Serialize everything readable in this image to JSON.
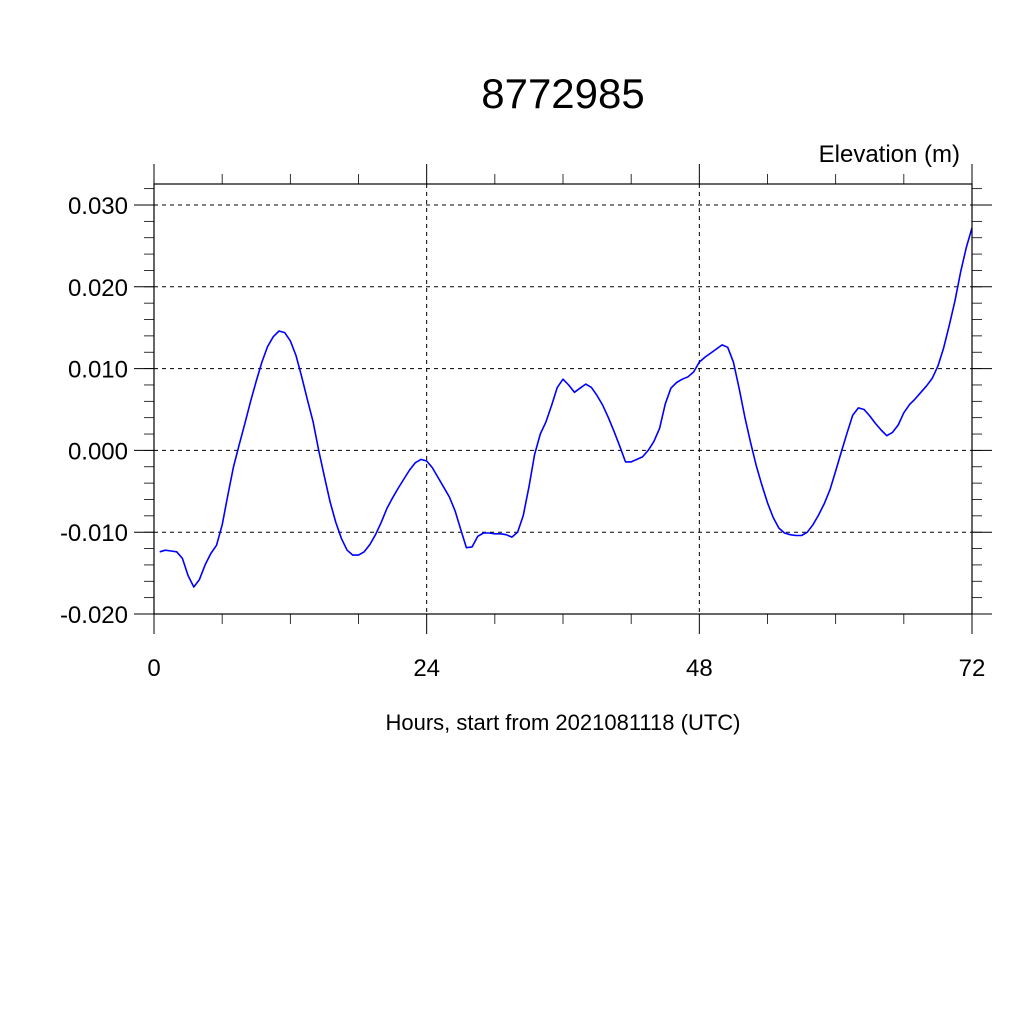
{
  "chart_data": {
    "type": "line",
    "title": "8772985",
    "ylabel": "Elevation (m)",
    "xlabel": "Hours, start from 2021081118 (UTC)",
    "xlim": [
      0,
      72
    ],
    "ylim": [
      -0.02,
      0.03
    ],
    "x_ticks": [
      0,
      24,
      48,
      72
    ],
    "x_tick_labels": [
      "0",
      "24",
      "48",
      "72"
    ],
    "y_ticks": [
      -0.02,
      -0.01,
      0.0,
      0.01,
      0.02,
      0.03
    ],
    "y_tick_labels": [
      "-0.020",
      "-0.010",
      "0.000",
      "0.010",
      "0.020",
      "0.030"
    ],
    "grid": true,
    "series_color": "#0000ff",
    "series": [
      {
        "x": [
          0.5,
          1.0,
          1.5,
          2.0,
          2.5,
          3.0,
          3.5,
          4.0,
          4.5,
          5.0,
          5.5,
          6.0,
          6.5,
          7.0,
          7.5,
          8.0,
          8.5,
          9.0,
          9.5,
          10.0,
          10.5,
          11.0,
          11.5,
          12.0,
          12.5,
          13.0,
          13.5,
          14.0,
          14.5,
          15.0,
          15.5,
          16.0,
          16.5,
          17.0,
          17.5,
          18.0,
          18.5,
          19.0,
          19.5,
          20.0,
          20.5,
          21.0,
          21.5,
          22.0,
          22.5,
          23.0,
          23.5,
          24.0,
          24.5,
          25.0,
          25.5,
          26.0,
          26.5,
          27.0,
          27.5,
          28.0,
          28.5,
          29.0,
          29.5,
          30.0,
          30.5,
          31.0,
          31.5,
          32.0,
          32.5,
          33.0,
          33.5,
          34.0,
          34.5,
          35.0,
          35.5,
          36.0,
          36.5,
          37.0,
          37.5,
          38.0,
          38.5,
          39.0,
          39.5,
          40.0,
          40.5,
          41.0,
          41.5,
          42.0,
          42.5,
          43.0,
          43.5,
          44.0,
          44.5,
          45.0,
          45.5,
          46.0,
          46.5,
          47.0,
          47.5,
          48.0,
          48.5,
          49.0,
          49.5,
          50.0,
          50.5,
          51.0,
          51.5,
          52.0,
          52.5,
          53.0,
          53.5,
          54.0,
          54.5,
          55.0,
          55.5,
          56.0,
          56.5,
          57.0,
          57.5,
          58.0,
          58.5,
          59.0,
          59.5,
          60.0,
          60.5,
          61.0,
          61.5,
          62.0,
          62.5,
          63.0,
          63.5,
          64.0,
          64.5,
          65.0,
          65.5,
          66.0,
          66.5,
          67.0,
          67.5,
          68.0,
          68.5,
          69.0,
          69.5,
          70.0,
          70.5,
          71.0,
          71.5,
          72.0
        ],
        "y": [
          -0.0124,
          -0.0122,
          -0.0123,
          -0.0124,
          -0.0132,
          -0.0153,
          -0.0167,
          -0.0158,
          -0.014,
          -0.0126,
          -0.0116,
          -0.0091,
          -0.0055,
          -0.002,
          0.0007,
          0.0033,
          0.006,
          0.0085,
          0.0108,
          0.0127,
          0.0139,
          0.0146,
          0.0144,
          0.0134,
          0.0116,
          0.009,
          0.0062,
          0.0035,
          0.0,
          -0.0032,
          -0.0063,
          -0.0088,
          -0.0108,
          -0.0122,
          -0.0128,
          -0.0128,
          -0.0124,
          -0.0115,
          -0.0103,
          -0.0088,
          -0.0071,
          -0.0058,
          -0.0046,
          -0.0035,
          -0.0024,
          -0.0015,
          -0.0011,
          -0.0013,
          -0.0021,
          -0.0033,
          -0.0045,
          -0.0057,
          -0.0074,
          -0.0097,
          -0.0119,
          -0.0118,
          -0.0105,
          -0.0101,
          -0.0101,
          -0.0102,
          -0.0102,
          -0.0103,
          -0.0106,
          -0.01,
          -0.008,
          -0.0045,
          -0.0005,
          0.002,
          0.0035,
          0.0055,
          0.0077,
          0.0087,
          0.008,
          0.0071,
          0.0076,
          0.0081,
          0.0077,
          0.0067,
          0.0055,
          0.004,
          0.0023,
          0.0005,
          -0.0014,
          -0.0014,
          -0.0011,
          -0.0008,
          0.0,
          0.0011,
          0.0027,
          0.0057,
          0.0076,
          0.0083,
          0.0087,
          0.009,
          0.0096,
          0.0108,
          0.0114,
          0.0119,
          0.0124,
          0.0129,
          0.0126,
          0.0108,
          0.0076,
          0.0041,
          0.001,
          -0.0018,
          -0.0042,
          -0.0064,
          -0.0082,
          -0.0095,
          -0.0101,
          -0.0103,
          -0.0104,
          -0.0104,
          -0.01,
          -0.0091,
          -0.0079,
          -0.0065,
          -0.0048,
          -0.0025,
          -0.0002,
          0.0021,
          0.0043,
          0.0052,
          0.005,
          0.0042,
          0.0033,
          0.0025,
          0.0018,
          0.0022,
          0.0031,
          0.0046,
          0.0056,
          0.0063,
          0.0071,
          0.0079,
          0.0088,
          0.0103,
          0.0125,
          0.0153,
          0.0183,
          0.0218,
          0.0248,
          0.0272
        ]
      }
    ]
  }
}
